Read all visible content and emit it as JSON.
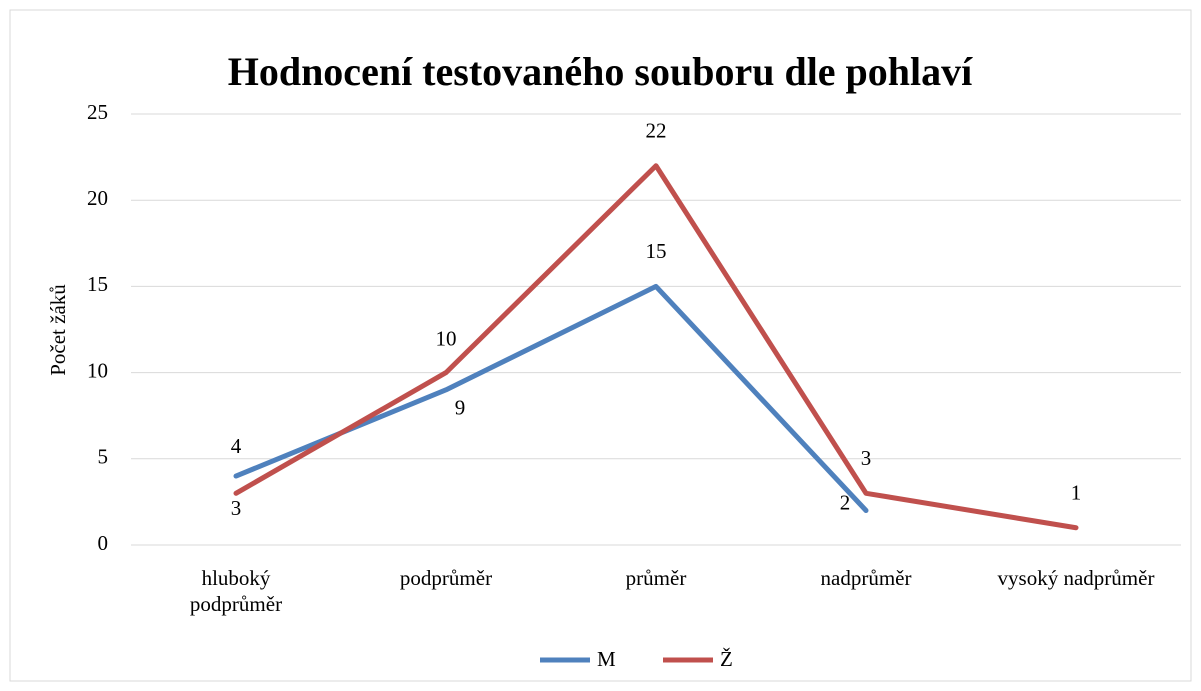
{
  "chart_data": {
    "type": "line",
    "title": "Hodnocení testovaného souboru dle pohlaví",
    "y_label": "Počet žáků",
    "categories": [
      "hluboký podprůměr",
      "podprůměr",
      "průměr",
      "nadprůměr",
      "vysoký nadprůměr"
    ],
    "series": [
      {
        "name": "M",
        "color": "#4f81bd",
        "values": [
          4,
          9,
          15,
          2,
          null
        ]
      },
      {
        "name": "Ž",
        "color": "#c0504d",
        "values": [
          3,
          10,
          22,
          3,
          1
        ]
      }
    ],
    "ylim": [
      0,
      25
    ],
    "yticks": [
      0,
      5,
      10,
      15,
      20,
      25
    ],
    "grid": true,
    "legend": "bottom"
  }
}
